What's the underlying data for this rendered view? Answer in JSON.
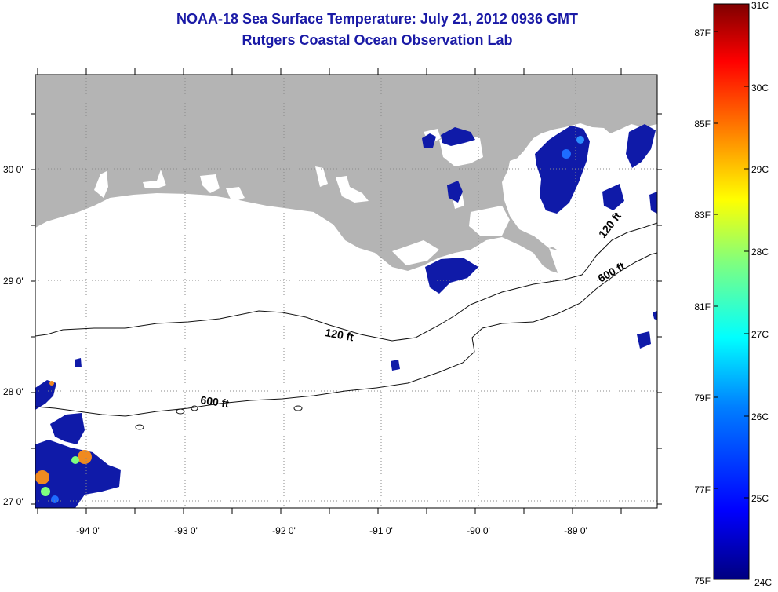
{
  "header": {
    "title": "NOAA-18 Sea Surface Temperature:  July 21, 2012 0936 GMT",
    "subtitle": "Rutgers Coastal Ocean Observation Lab"
  },
  "map": {
    "lon_labels": [
      "-94 0'",
      "-93 0'",
      "-92 0'",
      "-91 0'",
      "-90 0'",
      "-89 0'"
    ],
    "lat_labels": [
      "30 0'",
      "29 0'",
      "28 0'",
      "27 0'"
    ],
    "isobath_labels": [
      "120 ft",
      "120 ft",
      "600 ft",
      "600 ft"
    ]
  },
  "colorbar": {
    "celsius_labels": [
      "31C",
      "30C",
      "29C",
      "28C",
      "27C",
      "26C",
      "25C",
      "24C"
    ],
    "fahrenheit_labels": [
      "87F",
      "85F",
      "83F",
      "81F",
      "79F",
      "77F",
      "75F"
    ]
  },
  "colors": {
    "land": "#b4b4b4",
    "title": "#1a1aa6",
    "scale": [
      "#00007f",
      "#0000ff",
      "#007fff",
      "#00ffff",
      "#7fff7f",
      "#ffff00",
      "#ff7f00",
      "#ff0000",
      "#7f0000"
    ]
  }
}
